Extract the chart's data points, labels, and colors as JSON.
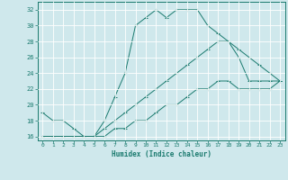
{
  "xlabel": "Humidex (Indice chaleur)",
  "background_color": "#cfe8ec",
  "grid_color": "#b0d4d8",
  "line_color": "#1a7a6e",
  "xlim": [
    -0.5,
    23.5
  ],
  "ylim": [
    15.5,
    33
  ],
  "xticks": [
    0,
    1,
    2,
    3,
    4,
    5,
    6,
    7,
    8,
    9,
    10,
    11,
    12,
    13,
    14,
    15,
    16,
    17,
    18,
    19,
    20,
    21,
    22,
    23
  ],
  "yticks": [
    16,
    18,
    20,
    22,
    24,
    26,
    28,
    30,
    32
  ],
  "line1_x": [
    0,
    1,
    2,
    3,
    4,
    5,
    6,
    7,
    8,
    9,
    10,
    11,
    12,
    13,
    14,
    15,
    16,
    17,
    18,
    19,
    20,
    21,
    22,
    23
  ],
  "line1_y": [
    19,
    18,
    18,
    17,
    16,
    16,
    18,
    21,
    24,
    30,
    31,
    32,
    31,
    32,
    32,
    32,
    30,
    29,
    28,
    26,
    23,
    23,
    23,
    23
  ],
  "line2_x": [
    0,
    1,
    2,
    3,
    4,
    5,
    6,
    7,
    8,
    9,
    10,
    11,
    12,
    13,
    14,
    15,
    16,
    17,
    18,
    19,
    20,
    21,
    22,
    23
  ],
  "line2_y": [
    16,
    16,
    16,
    16,
    16,
    16,
    17,
    18,
    19,
    20,
    21,
    22,
    23,
    24,
    25,
    26,
    27,
    28,
    28,
    27,
    26,
    25,
    24,
    23
  ],
  "line3_x": [
    0,
    1,
    2,
    3,
    4,
    5,
    6,
    7,
    8,
    9,
    10,
    11,
    12,
    13,
    14,
    15,
    16,
    17,
    18,
    19,
    20,
    21,
    22,
    23
  ],
  "line3_y": [
    16,
    16,
    16,
    16,
    16,
    16,
    16,
    17,
    17,
    18,
    18,
    19,
    20,
    20,
    21,
    22,
    22,
    23,
    23,
    22,
    22,
    22,
    22,
    23
  ]
}
